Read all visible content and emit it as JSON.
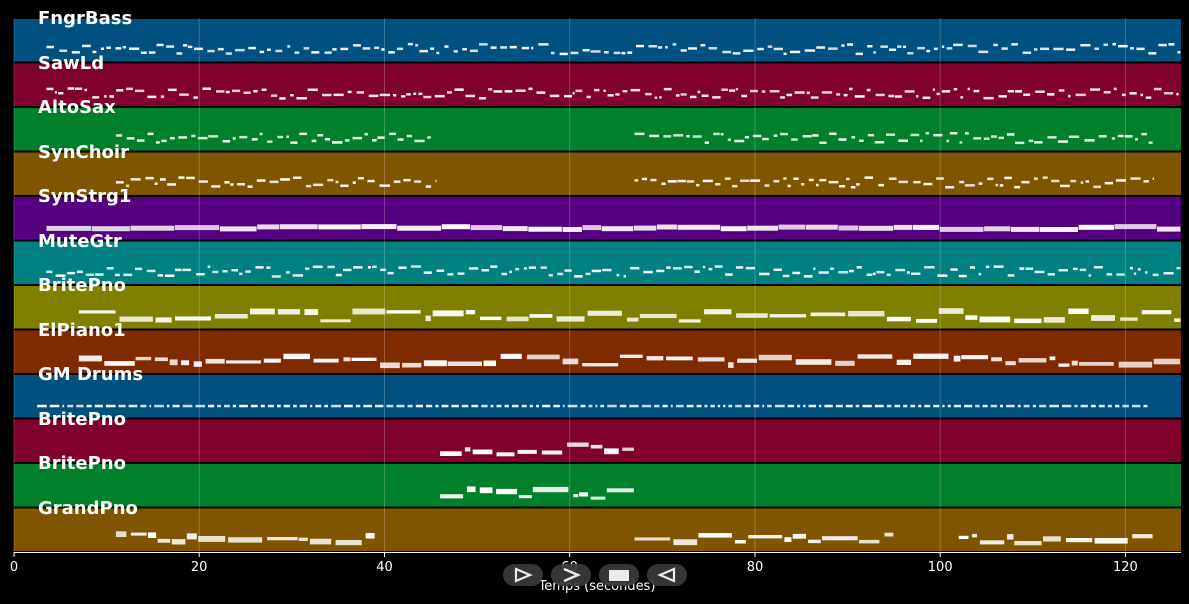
{
  "tracks": [
    {
      "name": "FngrBass",
      "color": "#005080"
    },
    {
      "name": "SawLd",
      "color": "#80002e"
    },
    {
      "name": "AltoSax",
      "color": "#00802a"
    },
    {
      "name": "SynChoir",
      "color": "#805500"
    },
    {
      "name": "SynStrg1",
      "color": "#550080"
    },
    {
      "name": "MuteGtr",
      "color": "#008080"
    },
    {
      "name": "BritePno",
      "color": "#808000"
    },
    {
      "name": "ElPiano1",
      "color": "#802a00"
    },
    {
      "name": "GM Drums",
      "color": "#005080"
    },
    {
      "name": "BritePno",
      "color": "#80002e"
    },
    {
      "name": "BritePno",
      "color": "#00802a"
    },
    {
      "name": "GrandPno",
      "color": "#805500"
    }
  ],
  "axis": {
    "xlabel": "Temps (secondes)",
    "xlim": [
      0,
      126
    ],
    "ticks": [
      "0",
      "20",
      "40",
      "60",
      "80",
      "100",
      "120"
    ]
  },
  "controls": [
    {
      "name": "play-button",
      "icon": "play-outline-icon"
    },
    {
      "name": "forward-button",
      "icon": "chevron-right-icon"
    },
    {
      "name": "stop-button",
      "icon": "stop-icon"
    },
    {
      "name": "rewind-button",
      "icon": "rewind-icon"
    }
  ],
  "chart_data": {
    "type": "piano-roll",
    "xlabel": "Temps (secondes)",
    "xlim": [
      0,
      126
    ],
    "grid": true,
    "series": [
      {
        "name": "FngrBass",
        "segments": [
          [
            3.5,
            126
          ]
        ]
      },
      {
        "name": "SawLd",
        "segments": [
          [
            3.5,
            126
          ]
        ]
      },
      {
        "name": "AltoSax",
        "segments": [
          [
            11,
            45.5
          ],
          [
            67,
            123
          ]
        ]
      },
      {
        "name": "SynChoir",
        "segments": [
          [
            11,
            45.5
          ],
          [
            67,
            123
          ]
        ]
      },
      {
        "name": "SynStrg1",
        "segments": [
          [
            3.5,
            126
          ]
        ]
      },
      {
        "name": "MuteGtr",
        "segments": [
          [
            3.5,
            126
          ]
        ]
      },
      {
        "name": "BritePno",
        "segments": [
          [
            7,
            126
          ]
        ]
      },
      {
        "name": "ElPiano1",
        "segments": [
          [
            7,
            126
          ]
        ]
      },
      {
        "name": "GM Drums",
        "segments": [
          [
            2.5,
            122.5
          ]
        ]
      },
      {
        "name": "BritePno",
        "segments": [
          [
            46,
            67
          ]
        ]
      },
      {
        "name": "BritePno",
        "segments": [
          [
            46,
            67
          ]
        ]
      },
      {
        "name": "GrandPno",
        "segments": [
          [
            11,
            39
          ],
          [
            67,
            95
          ],
          [
            102,
            123
          ]
        ]
      }
    ]
  }
}
